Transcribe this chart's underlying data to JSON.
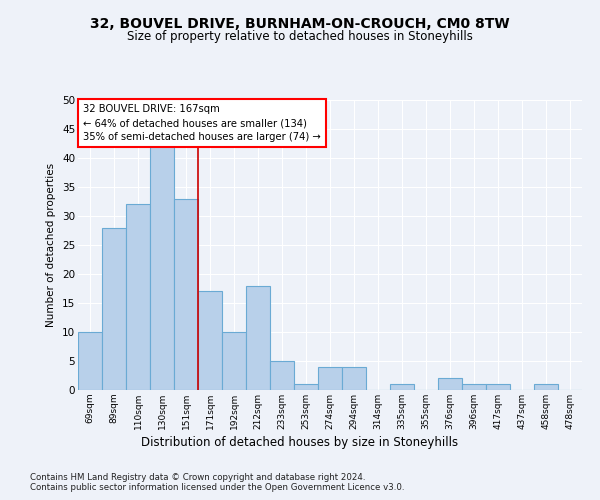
{
  "title1": "32, BOUVEL DRIVE, BURNHAM-ON-CROUCH, CM0 8TW",
  "title2": "Size of property relative to detached houses in Stoneyhills",
  "xlabel": "Distribution of detached houses by size in Stoneyhills",
  "ylabel": "Number of detached properties",
  "categories": [
    "69sqm",
    "89sqm",
    "110sqm",
    "130sqm",
    "151sqm",
    "171sqm",
    "192sqm",
    "212sqm",
    "233sqm",
    "253sqm",
    "274sqm",
    "294sqm",
    "314sqm",
    "335sqm",
    "355sqm",
    "376sqm",
    "396sqm",
    "417sqm",
    "437sqm",
    "458sqm",
    "478sqm"
  ],
  "values": [
    10,
    28,
    32,
    43,
    33,
    17,
    10,
    18,
    5,
    1,
    4,
    4,
    0,
    1,
    0,
    2,
    1,
    1,
    0,
    1,
    0
  ],
  "bar_color": "#b8d0ea",
  "bar_edge_color": "#6aaad4",
  "vline_x": 4.5,
  "vline_color": "#cc0000",
  "ann_line1": "32 BOUVEL DRIVE: 167sqm",
  "ann_line2": "← 64% of detached houses are smaller (134)",
  "ann_line3": "35% of semi-detached houses are larger (74) →",
  "ann_box_fc": "white",
  "ann_box_ec": "red",
  "ylim": [
    0,
    50
  ],
  "yticks": [
    0,
    5,
    10,
    15,
    20,
    25,
    30,
    35,
    40,
    45,
    50
  ],
  "bg_color": "#eef2f9",
  "grid_color": "#ffffff",
  "footer1": "Contains HM Land Registry data © Crown copyright and database right 2024.",
  "footer2": "Contains public sector information licensed under the Open Government Licence v3.0."
}
